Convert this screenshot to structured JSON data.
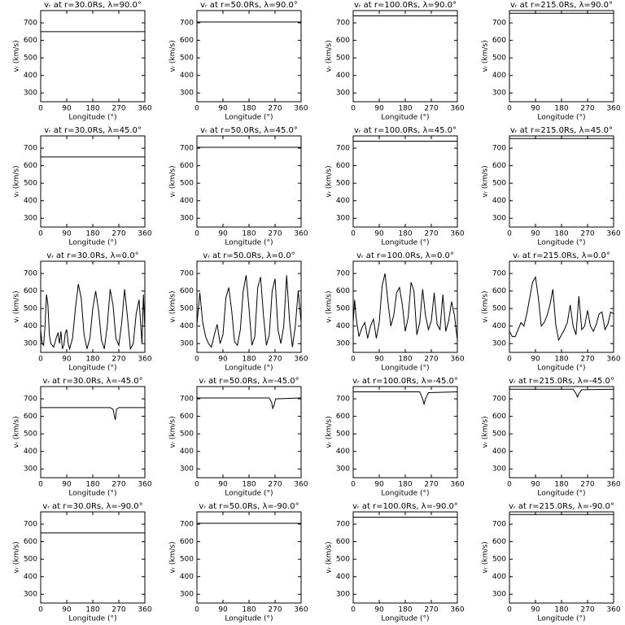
{
  "chart_data": [
    {
      "type": "line",
      "title": "vᵣ at r=30.0Rs, λ=90.0°",
      "x_label": "Longitude (°)",
      "y_label": "vᵣ (km/s)",
      "x": [
        0,
        360
      ],
      "values": [
        650,
        650
      ],
      "xlim": [
        0,
        360
      ],
      "ylim": [
        250,
        770
      ],
      "xticks": [
        0,
        90,
        180,
        270,
        360
      ],
      "yticks": [
        300,
        400,
        500,
        600,
        700
      ],
      "color": "#000000"
    },
    {
      "type": "line",
      "title": "vᵣ at r=50.0Rs, λ=90.0°",
      "x_label": "Longitude (°)",
      "y_label": "vᵣ (km/s)",
      "x": [
        0,
        360
      ],
      "values": [
        705,
        705
      ],
      "xlim": [
        0,
        360
      ],
      "ylim": [
        250,
        770
      ],
      "xticks": [
        0,
        90,
        180,
        270,
        360
      ],
      "yticks": [
        300,
        400,
        500,
        600,
        700
      ],
      "color": "#000000"
    },
    {
      "type": "line",
      "title": "vᵣ at r=100.0Rs, λ=90.0°",
      "x_label": "Longitude (°)",
      "y_label": "vᵣ (km/s)",
      "x": [
        0,
        360
      ],
      "values": [
        740,
        740
      ],
      "xlim": [
        0,
        360
      ],
      "ylim": [
        250,
        770
      ],
      "xticks": [
        0,
        90,
        180,
        270,
        360
      ],
      "yticks": [
        300,
        400,
        500,
        600,
        700
      ],
      "color": "#000000"
    },
    {
      "type": "line",
      "title": "vᵣ at r=215.0Rs, λ=90.0°",
      "x_label": "Longitude (°)",
      "y_label": "vᵣ (km/s)",
      "x": [
        0,
        360
      ],
      "values": [
        755,
        755
      ],
      "xlim": [
        0,
        360
      ],
      "ylim": [
        250,
        770
      ],
      "xticks": [
        0,
        90,
        180,
        270,
        360
      ],
      "yticks": [
        300,
        400,
        500,
        600,
        700
      ],
      "color": "#000000"
    },
    {
      "type": "line",
      "title": "vᵣ at r=30.0Rs, λ=45.0°",
      "x_label": "Longitude (°)",
      "y_label": "vᵣ (km/s)",
      "x": [
        0,
        360
      ],
      "values": [
        650,
        650
      ],
      "xlim": [
        0,
        360
      ],
      "ylim": [
        250,
        770
      ],
      "xticks": [
        0,
        90,
        180,
        270,
        360
      ],
      "yticks": [
        300,
        400,
        500,
        600,
        700
      ],
      "color": "#000000"
    },
    {
      "type": "line",
      "title": "vᵣ at r=50.0Rs, λ=45.0°",
      "x_label": "Longitude (°)",
      "y_label": "vᵣ (km/s)",
      "x": [
        0,
        360
      ],
      "values": [
        705,
        705
      ],
      "xlim": [
        0,
        360
      ],
      "ylim": [
        250,
        770
      ],
      "xticks": [
        0,
        90,
        180,
        270,
        360
      ],
      "yticks": [
        300,
        400,
        500,
        600,
        700
      ],
      "color": "#000000"
    },
    {
      "type": "line",
      "title": "vᵣ at r=100.0Rs, λ=45.0°",
      "x_label": "Longitude (°)",
      "y_label": "vᵣ (km/s)",
      "x": [
        0,
        360
      ],
      "values": [
        740,
        740
      ],
      "xlim": [
        0,
        360
      ],
      "ylim": [
        250,
        770
      ],
      "xticks": [
        0,
        90,
        180,
        270,
        360
      ],
      "yticks": [
        300,
        400,
        500,
        600,
        700
      ],
      "color": "#000000"
    },
    {
      "type": "line",
      "title": "vᵣ at r=215.0Rs, λ=45.0°",
      "x_label": "Longitude (°)",
      "y_label": "vᵣ (km/s)",
      "x": [
        0,
        360
      ],
      "values": [
        755,
        755
      ],
      "xlim": [
        0,
        360
      ],
      "ylim": [
        250,
        770
      ],
      "xticks": [
        0,
        90,
        180,
        270,
        360
      ],
      "yticks": [
        300,
        400,
        500,
        600,
        700
      ],
      "color": "#000000"
    },
    {
      "type": "line",
      "title": "vᵣ at r=30.0Rs, λ=0.0°",
      "x_label": "Longitude (°)",
      "y_label": "vᵣ (km/s)",
      "x": [
        0,
        5,
        10,
        15,
        20,
        25,
        30,
        35,
        45,
        55,
        60,
        65,
        70,
        75,
        80,
        85,
        90,
        95,
        100,
        110,
        120,
        130,
        140,
        150,
        160,
        170,
        180,
        190,
        200,
        210,
        220,
        230,
        240,
        250,
        260,
        270,
        280,
        290,
        300,
        310,
        320,
        330,
        340,
        350,
        355,
        360
      ],
      "values": [
        380,
        300,
        290,
        400,
        580,
        520,
        350,
        300,
        280,
        340,
        360,
        300,
        370,
        270,
        290,
        360,
        380,
        300,
        270,
        330,
        500,
        640,
        560,
        350,
        270,
        330,
        500,
        600,
        490,
        320,
        270,
        400,
        610,
        520,
        330,
        290,
        420,
        610,
        450,
        270,
        300,
        470,
        550,
        300,
        580,
        380
      ],
      "xlim": [
        0,
        360
      ],
      "ylim": [
        250,
        770
      ],
      "xticks": [
        0,
        90,
        180,
        270,
        360
      ],
      "yticks": [
        300,
        400,
        500,
        600,
        700
      ],
      "color": "#000000"
    },
    {
      "type": "line",
      "title": "vᵣ at r=50.0Rs, λ=0.0°",
      "x_label": "Longitude (°)",
      "y_label": "vᵣ (km/s)",
      "x": [
        0,
        10,
        20,
        30,
        40,
        50,
        60,
        70,
        80,
        90,
        100,
        110,
        120,
        130,
        140,
        150,
        160,
        170,
        180,
        190,
        200,
        210,
        220,
        230,
        240,
        250,
        260,
        270,
        280,
        290,
        300,
        310,
        320,
        330,
        340,
        350,
        360
      ],
      "values": [
        410,
        590,
        420,
        340,
        300,
        280,
        350,
        410,
        300,
        350,
        560,
        620,
        490,
        310,
        290,
        380,
        600,
        690,
        500,
        290,
        340,
        620,
        680,
        460,
        290,
        350,
        600,
        670,
        380,
        300,
        400,
        690,
        430,
        280,
        400,
        600,
        420
      ],
      "xlim": [
        0,
        360
      ],
      "ylim": [
        250,
        770
      ],
      "xticks": [
        0,
        90,
        180,
        270,
        360
      ],
      "yticks": [
        300,
        400,
        500,
        600,
        700
      ],
      "color": "#000000"
    },
    {
      "type": "line",
      "title": "vᵣ at r=100.0Rs, λ=0.0°",
      "x_label": "Longitude (°)",
      "y_label": "vᵣ (km/s)",
      "x": [
        0,
        5,
        10,
        20,
        30,
        40,
        50,
        60,
        70,
        80,
        90,
        100,
        110,
        120,
        130,
        140,
        150,
        160,
        170,
        180,
        190,
        200,
        210,
        220,
        230,
        240,
        250,
        260,
        270,
        280,
        290,
        300,
        310,
        320,
        330,
        340,
        350,
        360
      ],
      "values": [
        420,
        550,
        450,
        340,
        390,
        420,
        330,
        400,
        440,
        330,
        420,
        630,
        700,
        540,
        400,
        460,
        590,
        620,
        520,
        370,
        450,
        650,
        600,
        350,
        420,
        610,
        460,
        380,
        430,
        590,
        410,
        380,
        580,
        370,
        430,
        540,
        460,
        320
      ],
      "xlim": [
        0,
        360
      ],
      "ylim": [
        250,
        770
      ],
      "xticks": [
        0,
        90,
        180,
        270,
        360
      ],
      "yticks": [
        300,
        400,
        500,
        600,
        700
      ],
      "color": "#000000"
    },
    {
      "type": "line",
      "title": "vᵣ at r=215.0Rs, λ=0.0°",
      "x_label": "Longitude (°)",
      "y_label": "vᵣ (km/s)",
      "x": [
        0,
        10,
        20,
        30,
        40,
        50,
        60,
        70,
        80,
        90,
        100,
        110,
        120,
        130,
        140,
        150,
        160,
        170,
        180,
        190,
        200,
        210,
        220,
        230,
        240,
        250,
        260,
        270,
        280,
        290,
        300,
        310,
        320,
        330,
        340,
        350,
        360
      ],
      "values": [
        370,
        340,
        340,
        380,
        420,
        400,
        470,
        560,
        650,
        680,
        560,
        400,
        420,
        460,
        520,
        610,
        410,
        320,
        350,
        380,
        420,
        520,
        400,
        350,
        570,
        380,
        400,
        490,
        400,
        370,
        410,
        470,
        480,
        380,
        410,
        480,
        470
      ],
      "xlim": [
        0,
        360
      ],
      "ylim": [
        250,
        770
      ],
      "xticks": [
        0,
        90,
        180,
        270,
        360
      ],
      "yticks": [
        300,
        400,
        500,
        600,
        700
      ],
      "color": "#000000"
    },
    {
      "type": "line",
      "title": "vᵣ at r=30.0Rs, λ=-45.0°",
      "x_label": "Longitude (°)",
      "y_label": "vᵣ (km/s)",
      "x": [
        0,
        240,
        250,
        255,
        258,
        262,
        270,
        360
      ],
      "values": [
        650,
        650,
        640,
        600,
        580,
        640,
        650,
        650
      ],
      "xlim": [
        0,
        360
      ],
      "ylim": [
        250,
        770
      ],
      "xticks": [
        0,
        90,
        180,
        270,
        360
      ],
      "yticks": [
        300,
        400,
        500,
        600,
        700
      ],
      "color": "#000000"
    },
    {
      "type": "line",
      "title": "vᵣ at r=50.0Rs, λ=-45.0°",
      "x_label": "Longitude (°)",
      "y_label": "vᵣ (km/s)",
      "x": [
        0,
        250,
        258,
        262,
        266,
        272,
        360
      ],
      "values": [
        705,
        705,
        680,
        645,
        660,
        700,
        705
      ],
      "xlim": [
        0,
        360
      ],
      "ylim": [
        250,
        770
      ],
      "xticks": [
        0,
        90,
        180,
        270,
        360
      ],
      "yticks": [
        300,
        400,
        500,
        600,
        700
      ],
      "color": "#000000"
    },
    {
      "type": "line",
      "title": "vᵣ at r=100.0Rs, λ=-45.0°",
      "x_label": "Longitude (°)",
      "y_label": "vᵣ (km/s)",
      "x": [
        0,
        230,
        240,
        245,
        250,
        260,
        360
      ],
      "values": [
        740,
        740,
        700,
        670,
        700,
        735,
        740
      ],
      "xlim": [
        0,
        360
      ],
      "ylim": [
        250,
        770
      ],
      "xticks": [
        0,
        90,
        180,
        270,
        360
      ],
      "yticks": [
        300,
        400,
        500,
        600,
        700
      ],
      "color": "#000000"
    },
    {
      "type": "line",
      "title": "vᵣ at r=215.0Rs, λ=-45.0°",
      "x_label": "Longitude (°)",
      "y_label": "vᵣ (km/s)",
      "x": [
        0,
        220,
        230,
        235,
        240,
        250,
        360
      ],
      "values": [
        755,
        755,
        730,
        710,
        730,
        752,
        755
      ],
      "xlim": [
        0,
        360
      ],
      "ylim": [
        250,
        770
      ],
      "xticks": [
        0,
        90,
        180,
        270,
        360
      ],
      "yticks": [
        300,
        400,
        500,
        600,
        700
      ],
      "color": "#000000"
    },
    {
      "type": "line",
      "title": "vᵣ at r=30.0Rs, λ=-90.0°",
      "x_label": "Longitude (°)",
      "y_label": "vᵣ (km/s)",
      "x": [
        0,
        360
      ],
      "values": [
        650,
        650
      ],
      "xlim": [
        0,
        360
      ],
      "ylim": [
        250,
        770
      ],
      "xticks": [
        0,
        90,
        180,
        270,
        360
      ],
      "yticks": [
        300,
        400,
        500,
        600,
        700
      ],
      "color": "#000000"
    },
    {
      "type": "line",
      "title": "vᵣ at r=50.0Rs, λ=-90.0°",
      "x_label": "Longitude (°)",
      "y_label": "vᵣ (km/s)",
      "x": [
        0,
        360
      ],
      "values": [
        705,
        705
      ],
      "xlim": [
        0,
        360
      ],
      "ylim": [
        250,
        770
      ],
      "xticks": [
        0,
        90,
        180,
        270,
        360
      ],
      "yticks": [
        300,
        400,
        500,
        600,
        700
      ],
      "color": "#000000"
    },
    {
      "type": "line",
      "title": "vᵣ at r=100.0Rs, λ=-90.0°",
      "x_label": "Longitude (°)",
      "y_label": "vᵣ (km/s)",
      "x": [
        0,
        360
      ],
      "values": [
        740,
        740
      ],
      "xlim": [
        0,
        360
      ],
      "ylim": [
        250,
        770
      ],
      "xticks": [
        0,
        90,
        180,
        270,
        360
      ],
      "yticks": [
        300,
        400,
        500,
        600,
        700
      ],
      "color": "#000000"
    },
    {
      "type": "line",
      "title": "vᵣ at r=215.0Rs, λ=-90.0°",
      "x_label": "Longitude (°)",
      "y_label": "vᵣ (km/s)",
      "x": [
        0,
        360
      ],
      "values": [
        755,
        755
      ],
      "xlim": [
        0,
        360
      ],
      "ylim": [
        250,
        770
      ],
      "xticks": [
        0,
        90,
        180,
        270,
        360
      ],
      "yticks": [
        300,
        400,
        500,
        600,
        700
      ],
      "color": "#000000"
    }
  ]
}
